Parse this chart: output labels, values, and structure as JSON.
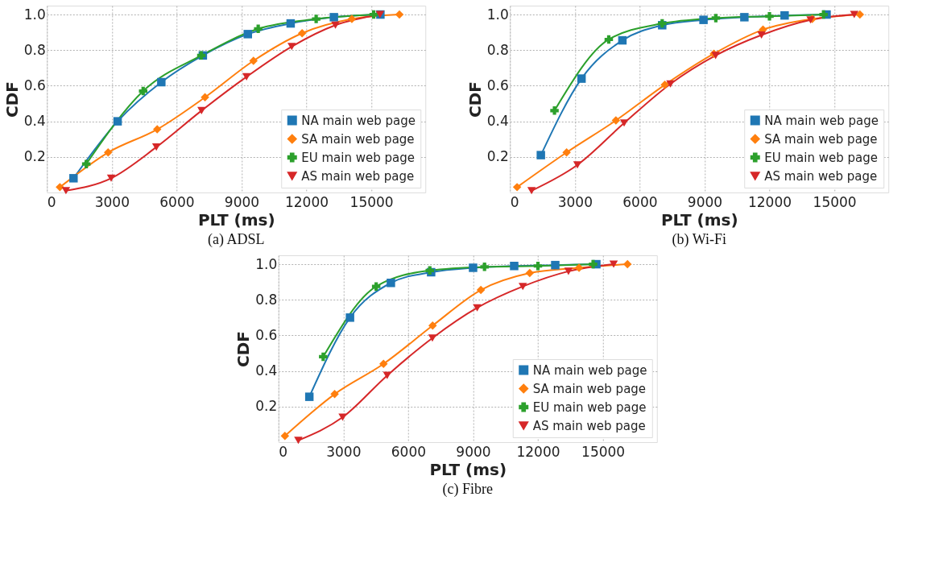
{
  "chart_data": [
    {
      "type": "line",
      "title": "(a) ADSL",
      "xlabel": "PLT (ms)",
      "ylabel": "CDF",
      "xlim": [
        0,
        17500
      ],
      "ylim": [
        0,
        1.05
      ],
      "xticks": [
        0,
        3000,
        6000,
        9000,
        12000,
        15000
      ],
      "yticks": [
        {
          "value": 0.2,
          "label": "0.2"
        },
        {
          "value": 0.4,
          "label": "0.4"
        },
        {
          "value": 0.6,
          "label": "0.6"
        },
        {
          "value": 0.8,
          "label": "0.8"
        },
        {
          "value": 1.0,
          "label": "1.0"
        }
      ],
      "grid": true,
      "legend": "bottom right",
      "line_style": "solid",
      "series": [
        {
          "name": "NA main web page",
          "color": "#1f77b4",
          "marker": "square",
          "x": [
            1230,
            3270,
            5290,
            7210,
            9290,
            11270,
            13270,
            15420
          ],
          "values": [
            0.08,
            0.4,
            0.62,
            0.77,
            0.89,
            0.95,
            0.985,
            1.0
          ]
        },
        {
          "name": "SA main web page",
          "color": "#ff7f0e",
          "marker": "diamond",
          "x": [
            600,
            2830,
            5100,
            7310,
            9550,
            11800,
            14100,
            16300
          ],
          "values": [
            0.03,
            0.225,
            0.355,
            0.535,
            0.74,
            0.895,
            0.975,
            1.0
          ]
        },
        {
          "name": "EU main web page",
          "color": "#2ca02c",
          "marker": "cross",
          "x": [
            1820,
            4450,
            7140,
            9770,
            12450,
            15110
          ],
          "values": [
            0.16,
            0.57,
            0.77,
            0.92,
            0.975,
            1.0
          ]
        },
        {
          "name": "AS main web page",
          "color": "#d62728",
          "marker": "triangle",
          "x": [
            880,
            2970,
            5060,
            7150,
            9230,
            11320,
            13340,
            15400
          ],
          "values": [
            0.01,
            0.08,
            0.255,
            0.46,
            0.65,
            0.82,
            0.94,
            1.0
          ]
        }
      ]
    },
    {
      "type": "line",
      "title": "(b) Wi-Fi",
      "xlabel": "PLT (ms)",
      "ylabel": "CDF",
      "xlim": [
        0,
        17500
      ],
      "ylim": [
        0,
        1.05
      ],
      "xticks": [
        0,
        3000,
        6000,
        9000,
        12000,
        15000
      ],
      "yticks": [
        {
          "value": 0.2,
          "label": "0.2"
        },
        {
          "value": 0.4,
          "label": "0.4"
        },
        {
          "value": 0.6,
          "label": "0.6"
        },
        {
          "value": 0.8,
          "label": "0.8"
        },
        {
          "value": 1.0,
          "label": "1.0"
        }
      ],
      "grid": true,
      "legend": "bottom right",
      "line_style": "solid",
      "series": [
        {
          "name": "NA main web page",
          "color": "#1f77b4",
          "marker": "square",
          "x": [
            1430,
            3310,
            5200,
            7040,
            8950,
            10840,
            12700,
            14640
          ],
          "values": [
            0.21,
            0.64,
            0.855,
            0.94,
            0.97,
            0.985,
            0.995,
            1.0
          ]
        },
        {
          "name": "SA main web page",
          "color": "#ff7f0e",
          "marker": "diamond",
          "x": [
            330,
            2620,
            4900,
            7160,
            9430,
            11700,
            13980,
            16180
          ],
          "values": [
            0.03,
            0.225,
            0.405,
            0.605,
            0.78,
            0.915,
            0.975,
            1.0
          ]
        },
        {
          "name": "EU main web page",
          "color": "#2ca02c",
          "marker": "cross",
          "x": [
            2060,
            4570,
            7040,
            9520,
            12000,
            14500
          ],
          "values": [
            0.46,
            0.86,
            0.95,
            0.98,
            0.99,
            1.0
          ]
        },
        {
          "name": "AS main web page",
          "color": "#d62728",
          "marker": "triangle",
          "x": [
            1000,
            3120,
            5280,
            7420,
            9510,
            11630,
            13900,
            15920
          ],
          "values": [
            0.01,
            0.155,
            0.39,
            0.61,
            0.77,
            0.885,
            0.97,
            1.0
          ]
        }
      ]
    },
    {
      "type": "line",
      "title": "(c) Fibre",
      "xlabel": "PLT (ms)",
      "ylabel": "CDF",
      "xlim": [
        0,
        17500
      ],
      "ylim": [
        0,
        1.05
      ],
      "xticks": [
        0,
        3000,
        6000,
        9000,
        12000,
        15000
      ],
      "yticks": [
        {
          "value": 0.2,
          "label": "0.2"
        },
        {
          "value": 0.4,
          "label": "0.4"
        },
        {
          "value": 0.6,
          "label": "0.6"
        },
        {
          "value": 0.8,
          "label": "0.8"
        },
        {
          "value": 1.0,
          "label": "1.0"
        }
      ],
      "grid": true,
      "legend": "bottom right",
      "line_style": "solid",
      "series": [
        {
          "name": "NA main web page",
          "color": "#1f77b4",
          "marker": "square",
          "x": [
            1430,
            3310,
            5200,
            7060,
            9000,
            10900,
            12800,
            14700
          ],
          "values": [
            0.255,
            0.7,
            0.895,
            0.955,
            0.98,
            0.99,
            0.995,
            1.0
          ]
        },
        {
          "name": "SA main web page",
          "color": "#ff7f0e",
          "marker": "diamond",
          "x": [
            300,
            2600,
            4860,
            7130,
            9360,
            11620,
            13900,
            16140
          ],
          "values": [
            0.035,
            0.27,
            0.44,
            0.655,
            0.855,
            0.95,
            0.98,
            1.0
          ]
        },
        {
          "name": "EU main web page",
          "color": "#2ca02c",
          "marker": "cross",
          "x": [
            2070,
            4520,
            7000,
            9530,
            12000,
            14550
          ],
          "values": [
            0.48,
            0.875,
            0.965,
            0.985,
            0.99,
            1.0
          ]
        },
        {
          "name": "AS main web page",
          "color": "#d62728",
          "marker": "triangle",
          "x": [
            920,
            2970,
            5030,
            7120,
            9190,
            11300,
            13410,
            15500
          ],
          "values": [
            0.01,
            0.14,
            0.375,
            0.585,
            0.755,
            0.875,
            0.96,
            1.0
          ]
        }
      ]
    }
  ]
}
